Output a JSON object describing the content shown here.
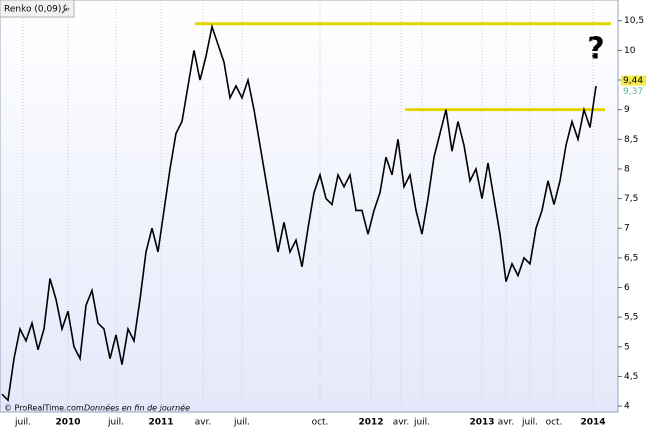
{
  "chart_data": {
    "type": "line",
    "title": "Renko (0,09)",
    "footer": {
      "copyright": "© ProRealTime.com",
      "note": "Données en fin de journée"
    },
    "annotation": "?",
    "xlim": [
      0,
      99
    ],
    "xticks": [
      {
        "value": 3.5,
        "label": "juil."
      },
      {
        "value": 11,
        "label": "2010"
      },
      {
        "value": 19,
        "label": "juil."
      },
      {
        "value": 26.5,
        "label": "2011"
      },
      {
        "value": 33.5,
        "label": "avr."
      },
      {
        "value": 40,
        "label": "juil."
      },
      {
        "value": 53,
        "label": "oct."
      },
      {
        "value": 61.5,
        "label": "2012"
      },
      {
        "value": 66.5,
        "label": "avr."
      },
      {
        "value": 70,
        "label": "juil."
      },
      {
        "value": 80,
        "label": "2013"
      },
      {
        "value": 84,
        "label": "avr."
      },
      {
        "value": 88,
        "label": "juil."
      },
      {
        "value": 92,
        "label": "oct."
      },
      {
        "value": 98.5,
        "label": "2014"
      }
    ],
    "ylim": [
      3.9,
      10.85
    ],
    "yticks": [
      4,
      {
        "value": 4.5,
        "label": "4,5"
      },
      5,
      {
        "value": 5.5,
        "label": "5,5"
      },
      6,
      {
        "value": 6.5,
        "label": "6,5"
      },
      7,
      {
        "value": 7.5,
        "label": "7,5"
      },
      8,
      {
        "value": 8.5,
        "label": "8,5"
      },
      9,
      {
        "value": 9.5,
        "label": "9,5"
      },
      10,
      {
        "value": 10.5,
        "label": "10,5"
      }
    ],
    "series": [
      {
        "name": "Renko",
        "color": "#000000",
        "values": [
          4.2,
          4.1,
          4.8,
          5.3,
          5.1,
          5.4,
          4.95,
          5.3,
          6.15,
          5.8,
          5.3,
          5.6,
          5.0,
          4.8,
          5.7,
          5.95,
          5.4,
          5.3,
          4.8,
          5.2,
          4.7,
          5.3,
          5.1,
          5.8,
          6.6,
          7.0,
          6.6,
          7.3,
          8.0,
          8.6,
          8.8,
          9.4,
          10.0,
          9.5,
          9.9,
          10.4,
          10.1,
          9.8,
          9.2,
          9.4,
          9.2,
          9.5,
          9.0,
          8.4,
          7.8,
          7.2,
          6.6,
          7.1,
          6.6,
          6.8,
          6.35,
          7.0,
          7.6,
          7.9,
          7.5,
          7.4,
          7.9,
          7.7,
          7.9,
          7.3,
          7.3,
          6.9,
          7.3,
          7.6,
          8.2,
          7.9,
          8.5,
          7.7,
          7.9,
          7.3,
          6.9,
          7.5,
          8.2,
          8.6,
          9.0,
          8.3,
          8.8,
          8.4,
          7.8,
          8.0,
          7.5,
          8.1,
          7.5,
          6.9,
          6.1,
          6.4,
          6.2,
          6.5,
          6.4,
          7.0,
          7.3,
          7.8,
          7.4,
          7.8,
          8.4,
          8.8,
          8.5,
          9.0,
          8.7,
          9.4
        ]
      }
    ],
    "hlines": [
      {
        "value": 10.45,
        "from": 32.2,
        "to": 101.5,
        "color": "#e3d400"
      },
      {
        "value": 9.0,
        "from": 67.2,
        "to": 100.5,
        "color": "#e3d400"
      }
    ],
    "price_labels": [
      {
        "value": 9.44,
        "label": "9,44",
        "color": "#000000",
        "background": "#f4e94a"
      },
      {
        "value": 9.37,
        "label": "9,37",
        "color": "#5fb98e",
        "background": "#ffffff"
      }
    ],
    "grid": true
  }
}
